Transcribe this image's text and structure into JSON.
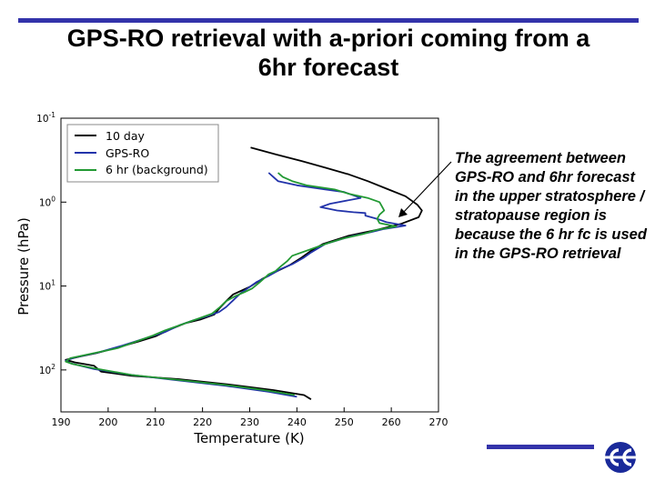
{
  "slide": {
    "title_line1": "GPS-RO retrieval with a-priori coming from a",
    "title_line2": "6hr forecast",
    "annotation": "The agreement between GPS-RO and 6hr forecast in the upper stratosphere / stratopause region is because the 6 hr fc is used in the GPS-RO retrieval",
    "accent_color": "#3333aa"
  },
  "logo": {
    "icon": "ecmwf-logo-icon"
  },
  "chart_data": {
    "type": "line",
    "title": "",
    "xlabel": "Temperature (K)",
    "ylabel": "Pressure (hPa)",
    "xlim": [
      190,
      270
    ],
    "ylim_log10": [
      -1,
      2.5
    ],
    "y_axis": "log, inverted",
    "grid": false,
    "legend_position": "top-left",
    "xticks": [
      "190",
      "200",
      "210",
      "220",
      "230",
      "240",
      "250",
      "260",
      "270"
    ],
    "yticks": [
      {
        "base": "10",
        "exp": "-1",
        "log10": -1
      },
      {
        "base": "10",
        "exp": "0",
        "log10": 0
      },
      {
        "base": "10",
        "exp": "1",
        "log10": 1
      },
      {
        "base": "10",
        "exp": "2",
        "log10": 2
      }
    ],
    "series": [
      {
        "name": "10 day",
        "color": "#000000",
        "points": [
          [
            230.2,
            -0.65
          ],
          [
            235.5,
            -0.57
          ],
          [
            241,
            -0.49
          ],
          [
            246,
            -0.41
          ],
          [
            251,
            -0.33
          ],
          [
            255,
            -0.25
          ],
          [
            259,
            -0.16
          ],
          [
            263,
            -0.07
          ],
          [
            265.5,
            0.03
          ],
          [
            266.5,
            0.1
          ],
          [
            265.8,
            0.18
          ],
          [
            262,
            0.26
          ],
          [
            257,
            0.33
          ],
          [
            251,
            0.4
          ],
          [
            245.5,
            0.5
          ],
          [
            243,
            0.58
          ],
          [
            241,
            0.66
          ],
          [
            238.5,
            0.75
          ],
          [
            235.5,
            0.83
          ],
          [
            232.5,
            0.92
          ],
          [
            230,
            1.01
          ],
          [
            226.5,
            1.1
          ],
          [
            225,
            1.18
          ],
          [
            223.5,
            1.27
          ],
          [
            222.5,
            1.34
          ],
          [
            219.5,
            1.4
          ],
          [
            216.5,
            1.44
          ],
          [
            213,
            1.52
          ],
          [
            210,
            1.6
          ],
          [
            206.5,
            1.66
          ],
          [
            201.5,
            1.74
          ],
          [
            197.5,
            1.8
          ],
          [
            194,
            1.84
          ],
          [
            191,
            1.88
          ],
          [
            193,
            1.91
          ],
          [
            195,
            1.93
          ],
          [
            197,
            1.95
          ],
          [
            198.5,
            2.02
          ],
          [
            205,
            2.07
          ],
          [
            215,
            2.11
          ],
          [
            225,
            2.17
          ],
          [
            235,
            2.24
          ],
          [
            241.5,
            2.3
          ],
          [
            243,
            2.35
          ]
        ]
      },
      {
        "name": "GPS-RO",
        "color": "#2233aa",
        "points": [
          [
            234,
            -0.35
          ],
          [
            235,
            -0.3
          ],
          [
            236,
            -0.25
          ],
          [
            240,
            -0.2
          ],
          [
            246,
            -0.15
          ],
          [
            250,
            -0.12
          ],
          [
            253.5,
            -0.05
          ],
          [
            247,
            0.02
          ],
          [
            245,
            0.06
          ],
          [
            248.5,
            0.1
          ],
          [
            252,
            0.12
          ],
          [
            254.5,
            0.13
          ],
          [
            254.5,
            0.16
          ],
          [
            257,
            0.2
          ],
          [
            259,
            0.24
          ],
          [
            263,
            0.28
          ],
          [
            258.5,
            0.32
          ],
          [
            255.5,
            0.36
          ],
          [
            252,
            0.4
          ],
          [
            249.5,
            0.44
          ],
          [
            246,
            0.5
          ],
          [
            243,
            0.6
          ],
          [
            241.5,
            0.66
          ],
          [
            239,
            0.74
          ],
          [
            236.5,
            0.8
          ],
          [
            234,
            0.88
          ],
          [
            231.5,
            0.95
          ],
          [
            229.5,
            1.03
          ],
          [
            228,
            1.09
          ],
          [
            226.5,
            1.17
          ],
          [
            225,
            1.25
          ],
          [
            223.5,
            1.31
          ],
          [
            221,
            1.36
          ],
          [
            218,
            1.41
          ],
          [
            215,
            1.47
          ],
          [
            212,
            1.55
          ],
          [
            208,
            1.62
          ],
          [
            203,
            1.71
          ],
          [
            198,
            1.79
          ],
          [
            193,
            1.85
          ],
          [
            191,
            1.89
          ],
          [
            192,
            1.92
          ],
          [
            197,
            1.99
          ],
          [
            205,
            2.06
          ],
          [
            214,
            2.12
          ],
          [
            225,
            2.19
          ],
          [
            234,
            2.26
          ],
          [
            240,
            2.32
          ]
        ]
      },
      {
        "name": "6 hr (background)",
        "color": "#229933",
        "points": [
          [
            236,
            -0.35
          ],
          [
            237,
            -0.3
          ],
          [
            239,
            -0.25
          ],
          [
            242,
            -0.2
          ],
          [
            248,
            -0.15
          ],
          [
            251,
            -0.1
          ],
          [
            255,
            -0.05
          ],
          [
            257.5,
            0.0
          ],
          [
            258,
            0.05
          ],
          [
            258.5,
            0.1
          ],
          [
            257.5,
            0.15
          ],
          [
            257,
            0.2
          ],
          [
            257.5,
            0.25
          ],
          [
            261,
            0.29
          ],
          [
            257,
            0.33
          ],
          [
            254,
            0.38
          ],
          [
            250,
            0.43
          ],
          [
            246.5,
            0.49
          ],
          [
            243,
            0.56
          ],
          [
            239,
            0.64
          ],
          [
            238,
            0.7
          ],
          [
            236.5,
            0.77
          ],
          [
            235.5,
            0.82
          ],
          [
            234,
            0.86
          ],
          [
            232,
            0.96
          ],
          [
            230.5,
            1.03
          ],
          [
            229,
            1.07
          ],
          [
            227,
            1.12
          ],
          [
            225,
            1.18
          ],
          [
            223.5,
            1.26
          ],
          [
            222,
            1.33
          ],
          [
            219,
            1.39
          ],
          [
            216,
            1.45
          ],
          [
            212,
            1.53
          ],
          [
            209.5,
            1.59
          ],
          [
            206,
            1.66
          ],
          [
            202,
            1.74
          ],
          [
            197,
            1.8
          ],
          [
            192,
            1.86
          ],
          [
            191,
            1.9
          ],
          [
            192.5,
            1.93
          ],
          [
            197,
            1.98
          ],
          [
            205,
            2.06
          ],
          [
            215,
            2.12
          ],
          [
            225,
            2.18
          ],
          [
            233,
            2.24
          ],
          [
            239.5,
            2.3
          ]
        ]
      }
    ]
  }
}
